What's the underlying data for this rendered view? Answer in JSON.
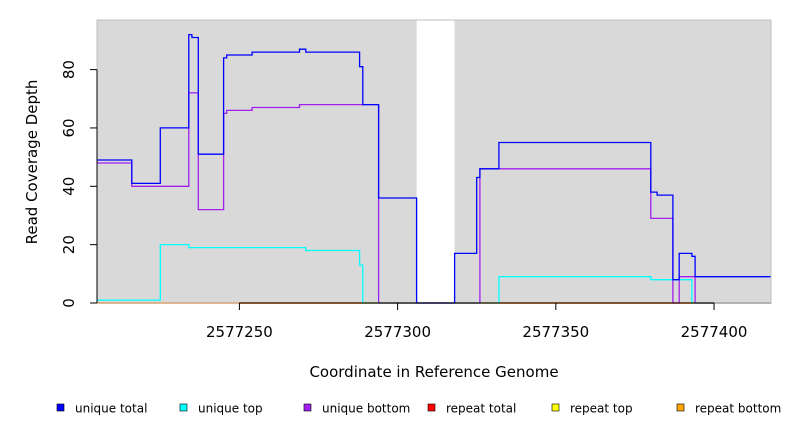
{
  "chart_data": {
    "type": "line",
    "xlabel": "Coordinate in Reference Genome",
    "ylabel": "Read Coverage Depth",
    "xlim": [
      2577205,
      2577418
    ],
    "ylim": [
      0,
      97
    ],
    "x_ticks": [
      2577250,
      2577300,
      2577350,
      2577400
    ],
    "x_tick_labels": [
      "2577250",
      "2577300",
      "2577350",
      "2577400"
    ],
    "y_ticks": [
      0,
      20,
      40,
      60,
      80
    ],
    "y_tick_labels": [
      "0",
      "20",
      "40",
      "60",
      "80"
    ],
    "grid": false,
    "background": "#d9d9d9",
    "legend_position": "bottom",
    "gap_region": [
      2577306,
      2577318
    ],
    "series": [
      {
        "name": "unique total",
        "color": "#0000ff",
        "points": [
          [
            2577205,
            49
          ],
          [
            2577216,
            49
          ],
          [
            2577216,
            41
          ],
          [
            2577225,
            41
          ],
          [
            2577225,
            60
          ],
          [
            2577234,
            60
          ],
          [
            2577234,
            92
          ],
          [
            2577235,
            92
          ],
          [
            2577235,
            91
          ],
          [
            2577237,
            91
          ],
          [
            2577237,
            51
          ],
          [
            2577245,
            51
          ],
          [
            2577245,
            84
          ],
          [
            2577246,
            84
          ],
          [
            2577246,
            85
          ],
          [
            2577254,
            85
          ],
          [
            2577254,
            86
          ],
          [
            2577269,
            86
          ],
          [
            2577269,
            87
          ],
          [
            2577271,
            87
          ],
          [
            2577271,
            86
          ],
          [
            2577288,
            86
          ],
          [
            2577288,
            81
          ],
          [
            2577289,
            81
          ],
          [
            2577289,
            68
          ],
          [
            2577294,
            68
          ],
          [
            2577294,
            36
          ],
          [
            2577306,
            36
          ],
          [
            2577306,
            0
          ],
          [
            2577318,
            0
          ],
          [
            2577318,
            17
          ],
          [
            2577325,
            17
          ],
          [
            2577325,
            43
          ],
          [
            2577326,
            43
          ],
          [
            2577326,
            46
          ],
          [
            2577332,
            46
          ],
          [
            2577332,
            55
          ],
          [
            2577380,
            55
          ],
          [
            2577380,
            38
          ],
          [
            2577382,
            38
          ],
          [
            2577382,
            37
          ],
          [
            2577387,
            37
          ],
          [
            2577387,
            8
          ],
          [
            2577389,
            8
          ],
          [
            2577389,
            17
          ],
          [
            2577393,
            17
          ],
          [
            2577393,
            16
          ],
          [
            2577394,
            16
          ],
          [
            2577394,
            9
          ],
          [
            2577418,
            9
          ]
        ]
      },
      {
        "name": "unique top",
        "color": "#00ffff",
        "points": [
          [
            2577205,
            1
          ],
          [
            2577225,
            1
          ],
          [
            2577225,
            20
          ],
          [
            2577234,
            20
          ],
          [
            2577234,
            19
          ],
          [
            2577271,
            19
          ],
          [
            2577271,
            18
          ],
          [
            2577288,
            18
          ],
          [
            2577288,
            13
          ],
          [
            2577289,
            13
          ],
          [
            2577289,
            0
          ],
          [
            2577306,
            0
          ],
          [
            2577318,
            0
          ],
          [
            2577332,
            0
          ],
          [
            2577332,
            9
          ],
          [
            2577380,
            9
          ],
          [
            2577380,
            8
          ],
          [
            2577387,
            8
          ],
          [
            2577387,
            8
          ],
          [
            2577393,
            8
          ],
          [
            2577393,
            0
          ],
          [
            2577418,
            0
          ]
        ]
      },
      {
        "name": "unique bottom",
        "color": "#a020f0",
        "points": [
          [
            2577205,
            48
          ],
          [
            2577216,
            48
          ],
          [
            2577216,
            40
          ],
          [
            2577234,
            40
          ],
          [
            2577234,
            72
          ],
          [
            2577237,
            72
          ],
          [
            2577237,
            32
          ],
          [
            2577245,
            32
          ],
          [
            2577245,
            65
          ],
          [
            2577246,
            65
          ],
          [
            2577246,
            66
          ],
          [
            2577254,
            66
          ],
          [
            2577254,
            67
          ],
          [
            2577269,
            67
          ],
          [
            2577269,
            68
          ],
          [
            2577294,
            68
          ],
          [
            2577294,
            0
          ],
          [
            2577318,
            0
          ],
          [
            2577326,
            0
          ],
          [
            2577326,
            46
          ],
          [
            2577380,
            46
          ],
          [
            2577380,
            29
          ],
          [
            2577387,
            29
          ],
          [
            2577387,
            0
          ],
          [
            2577389,
            0
          ],
          [
            2577389,
            9
          ],
          [
            2577394,
            9
          ],
          [
            2577394,
            0
          ],
          [
            2577418,
            0
          ]
        ]
      },
      {
        "name": "repeat total",
        "color": "#ff0000",
        "points": [
          [
            2577205,
            0
          ],
          [
            2577418,
            0
          ]
        ]
      },
      {
        "name": "repeat top",
        "color": "#ffff00",
        "points": [
          [
            2577205,
            0
          ],
          [
            2577418,
            0
          ]
        ]
      },
      {
        "name": "repeat bottom",
        "color": "#ffa500",
        "points": [
          [
            2577205,
            0
          ],
          [
            2577418,
            0
          ]
        ]
      }
    ]
  }
}
